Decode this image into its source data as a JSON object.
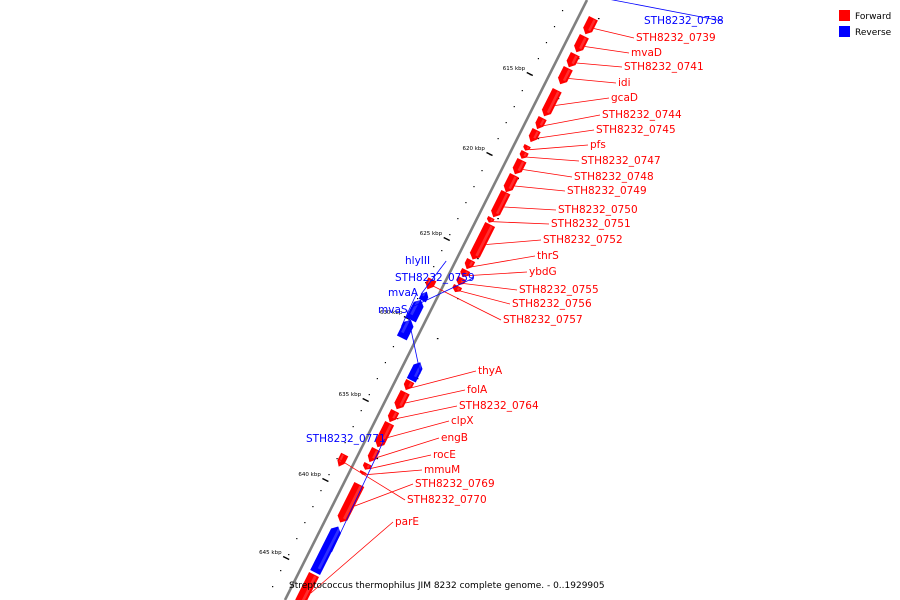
{
  "caption": "Streptococcus thermophilus JIM 8232 complete genome. - 0..1929905",
  "legend": [
    {
      "label": "Forward",
      "color": "#ff0000"
    },
    {
      "label": "Reverse",
      "color": "#0000ff"
    }
  ],
  "colors": {
    "forward": "#ff0000",
    "reverse": "#0000ff",
    "backbone": "#808080"
  },
  "ticks": [
    "615 kbp",
    "620 kbp",
    "625 kbp",
    "630 kbp",
    "635 kbp",
    "640 kbp",
    "645 kbp"
  ],
  "genes": [
    {
      "name": "STH8232_0738",
      "strand": "reverse"
    },
    {
      "name": "STH8232_0739",
      "strand": "forward"
    },
    {
      "name": "mvaD",
      "strand": "forward"
    },
    {
      "name": "STH8232_0741",
      "strand": "forward"
    },
    {
      "name": "idi",
      "strand": "forward"
    },
    {
      "name": "gcaD",
      "strand": "forward"
    },
    {
      "name": "STH8232_0744",
      "strand": "forward"
    },
    {
      "name": "STH8232_0745",
      "strand": "forward"
    },
    {
      "name": "pfs",
      "strand": "forward"
    },
    {
      "name": "STH8232_0747",
      "strand": "forward"
    },
    {
      "name": "STH8232_0748",
      "strand": "forward"
    },
    {
      "name": "STH8232_0749",
      "strand": "forward"
    },
    {
      "name": "STH8232_0750",
      "strand": "forward"
    },
    {
      "name": "STH8232_0751",
      "strand": "forward"
    },
    {
      "name": "STH8232_0752",
      "strand": "forward"
    },
    {
      "name": "thrS",
      "strand": "forward"
    },
    {
      "name": "ybdG",
      "strand": "forward"
    },
    {
      "name": "STH8232_0755",
      "strand": "forward"
    },
    {
      "name": "STH8232_0756",
      "strand": "forward"
    },
    {
      "name": "STH8232_0757",
      "strand": "forward"
    },
    {
      "name": "hlyIII",
      "strand": "reverse"
    },
    {
      "name": "STH8232_0759",
      "strand": "reverse"
    },
    {
      "name": "mvaA",
      "strand": "reverse"
    },
    {
      "name": "mvaS",
      "strand": "reverse"
    },
    {
      "name": "thyA",
      "strand": "forward"
    },
    {
      "name": "folA",
      "strand": "forward"
    },
    {
      "name": "STH8232_0764",
      "strand": "forward"
    },
    {
      "name": "clpX",
      "strand": "forward"
    },
    {
      "name": "engB",
      "strand": "forward"
    },
    {
      "name": "rocE",
      "strand": "forward"
    },
    {
      "name": "mmuM",
      "strand": "forward"
    },
    {
      "name": "STH8232_0769",
      "strand": "forward"
    },
    {
      "name": "STH8232_0770",
      "strand": "forward"
    },
    {
      "name": "STH8232_0771",
      "strand": "reverse"
    },
    {
      "name": "parE",
      "strand": "forward"
    }
  ]
}
